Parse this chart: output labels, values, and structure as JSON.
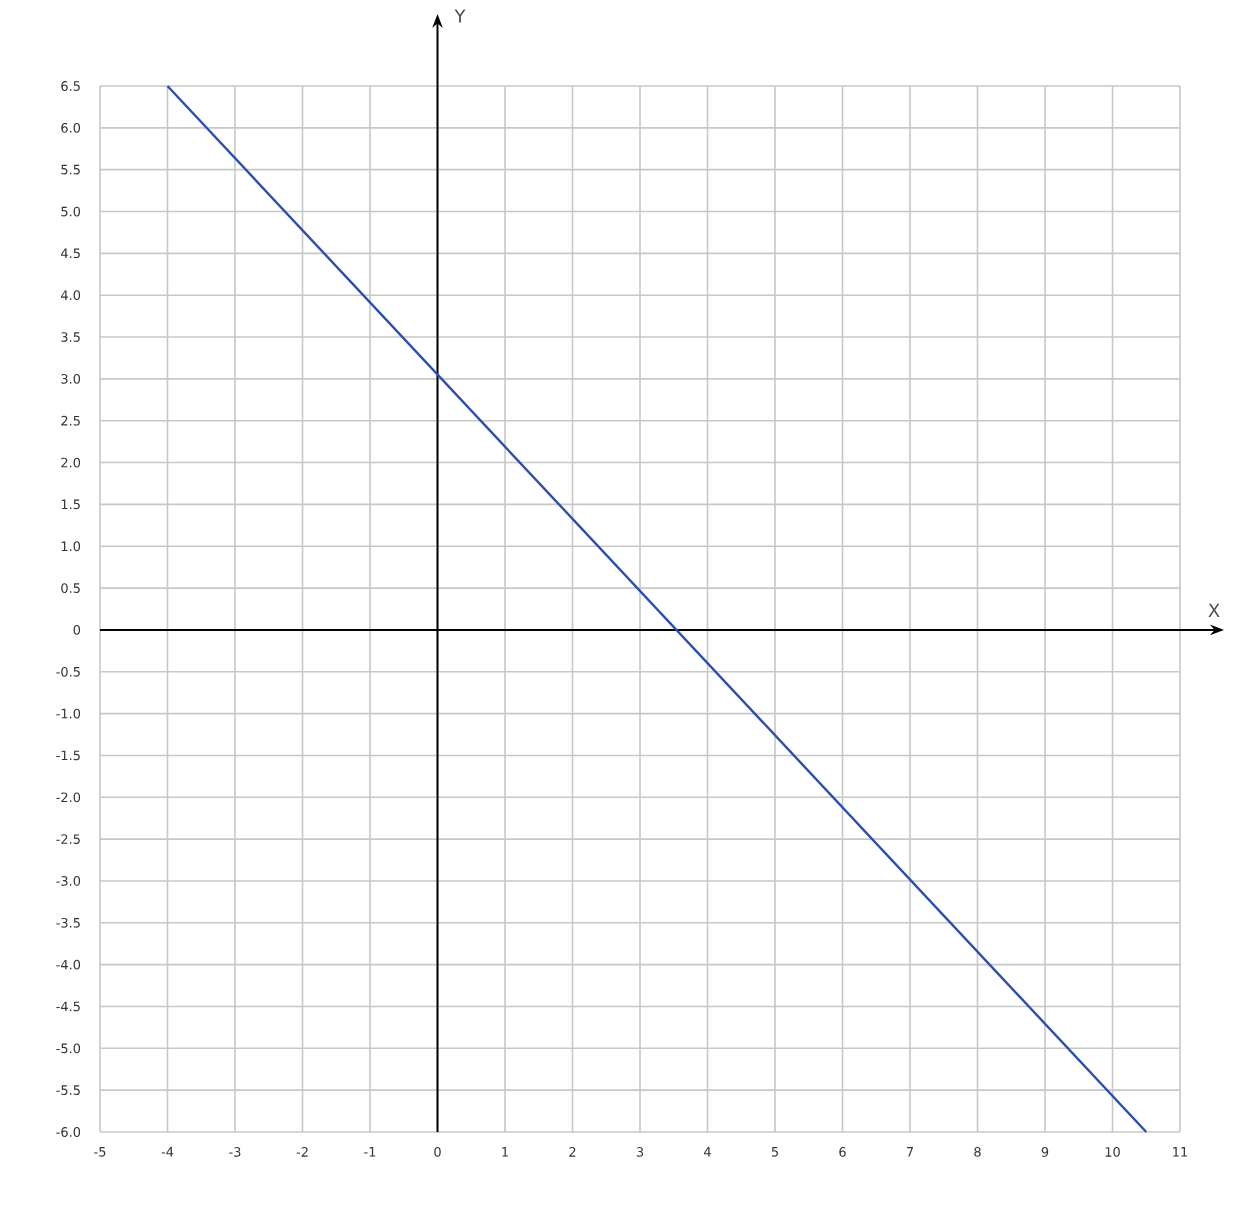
{
  "chart_data": {
    "type": "line",
    "xlabel": "X",
    "ylabel": "Y",
    "x": [
      -4,
      10.5
    ],
    "series": [
      {
        "color": "#2a4db0",
        "values": [
          6.5,
          -6
        ]
      }
    ],
    "xlim": [
      -5,
      11
    ],
    "ylim": [
      -6,
      6.5
    ],
    "xticks": [
      -5,
      -4,
      -3,
      -2,
      -1,
      0,
      1,
      2,
      3,
      4,
      5,
      6,
      7,
      8,
      9,
      10,
      11
    ],
    "yticks": [
      {
        "value": -6,
        "label": "-6.0"
      },
      -5.5,
      {
        "value": -5,
        "label": "-5.0"
      },
      -4.5,
      {
        "value": -4,
        "label": "-4.0"
      },
      -3.5,
      {
        "value": -3,
        "label": "-3.0"
      },
      -2.5,
      {
        "value": -2,
        "label": "-2.0"
      },
      -1.5,
      {
        "value": -1,
        "label": "-1.0"
      },
      -0.5,
      0,
      0.5,
      {
        "value": 1,
        "label": "1.0"
      },
      1.5,
      {
        "value": 2,
        "label": "2.0"
      },
      2.5,
      {
        "value": 3,
        "label": "3.0"
      },
      3.5,
      {
        "value": 4,
        "label": "4.0"
      },
      4.5,
      {
        "value": 5,
        "label": "5.0"
      },
      5.5,
      {
        "value": 6,
        "label": "6.0"
      },
      6.5
    ],
    "grid": true,
    "marker": "none",
    "line_style": "solid"
  }
}
